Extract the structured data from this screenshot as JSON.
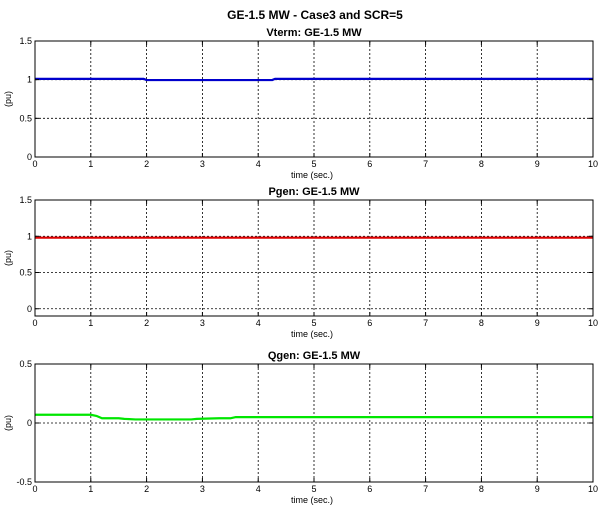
{
  "figure_title": "GE-1.5 MW - Case3 and SCR=5",
  "chart_data": [
    {
      "type": "line",
      "title": "Vterm: GE-1.5 MW",
      "xlabel": "time (sec.)",
      "ylabel": "(pu)",
      "xlim": [
        0,
        10
      ],
      "ylim": [
        0,
        1.5
      ],
      "xticks": [
        "0",
        "1",
        "2",
        "3",
        "4",
        "5",
        "6",
        "7",
        "8",
        "9",
        "10"
      ],
      "yticks": [
        {
          "value": 0,
          "label": "0"
        },
        {
          "value": 0.5,
          "label": "0.5"
        },
        {
          "value": 1,
          "label": "1"
        },
        {
          "value": 1.5,
          "label": "1.5"
        }
      ],
      "grid": true,
      "series": [
        {
          "color": "#0000cc",
          "x": [
            0,
            1.0,
            1.05,
            1.95,
            2.0,
            4.25,
            4.3,
            10
          ],
          "y": [
            1.01,
            1.01,
            1.01,
            1.01,
            0.995,
            0.995,
            1.01,
            1.01
          ]
        }
      ]
    },
    {
      "type": "line",
      "title": "Pgen: GE-1.5 MW",
      "xlabel": "time (sec.)",
      "ylabel": "(pu)",
      "xlim": [
        0,
        10
      ],
      "ylim": [
        -0.1,
        1.5
      ],
      "xticks": [
        "0",
        "1",
        "2",
        "3",
        "4",
        "5",
        "6",
        "7",
        "8",
        "9",
        "10"
      ],
      "yticks": [
        {
          "value": 0,
          "label": "0"
        },
        {
          "value": 0.5,
          "label": "0.5"
        },
        {
          "value": 1,
          "label": "1"
        },
        {
          "value": 1.5,
          "label": "1.5"
        }
      ],
      "grid": true,
      "series": [
        {
          "color": "#dd0000",
          "x": [
            0,
            10
          ],
          "y": [
            0.98,
            0.98
          ]
        }
      ]
    },
    {
      "type": "line",
      "title": "Qgen: GE-1.5 MW",
      "xlabel": "time (sec.)",
      "ylabel": "(pu)",
      "xlim": [
        0,
        10
      ],
      "ylim": [
        -0.5,
        0.5
      ],
      "xticks": [
        "0",
        "1",
        "2",
        "3",
        "4",
        "5",
        "6",
        "7",
        "8",
        "9",
        "10"
      ],
      "yticks": [
        {
          "value": -0.5,
          "label": "-0.5"
        },
        {
          "value": 0,
          "label": "0"
        },
        {
          "value": 0.5,
          "label": "0.5"
        }
      ],
      "grid": true,
      "series": [
        {
          "color": "#00e600",
          "x": [
            0,
            1.0,
            1.1,
            1.2,
            1.5,
            1.6,
            1.8,
            2.0,
            2.8,
            2.9,
            3.3,
            3.5,
            3.6,
            4.0,
            10
          ],
          "y": [
            0.07,
            0.07,
            0.06,
            0.04,
            0.04,
            0.035,
            0.03,
            0.03,
            0.03,
            0.035,
            0.04,
            0.04,
            0.05,
            0.05,
            0.05
          ]
        }
      ]
    }
  ]
}
